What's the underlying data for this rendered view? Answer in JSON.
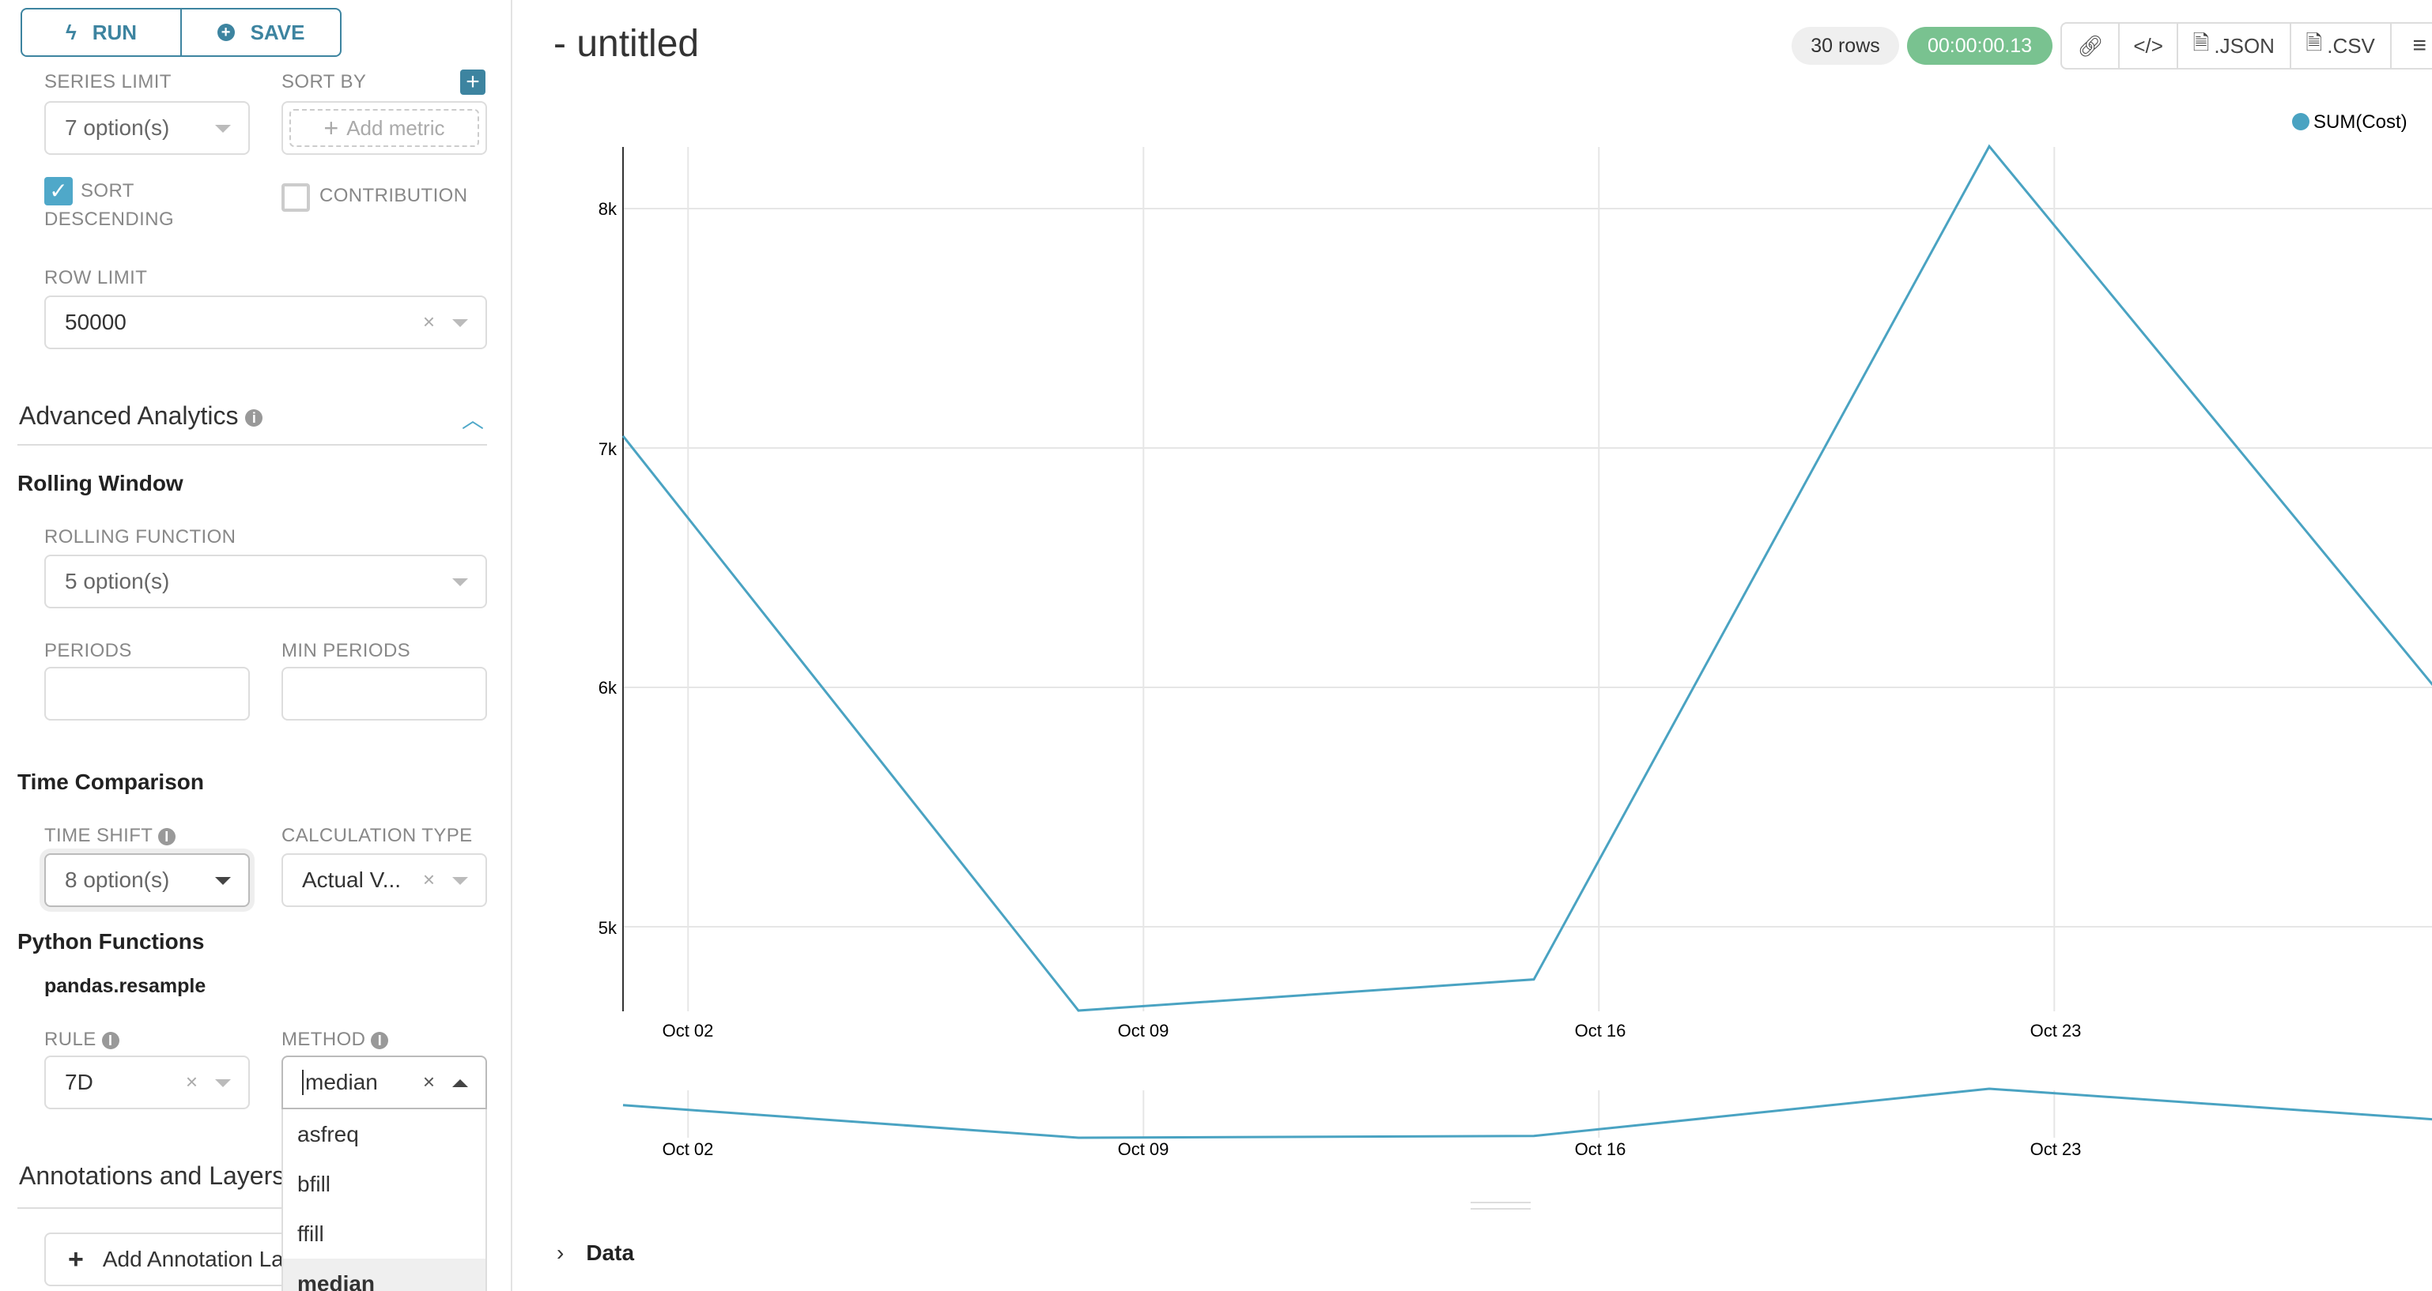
{
  "toolbar": {
    "run_label": "RUN",
    "save_label": "SAVE"
  },
  "sidebar": {
    "series_limit": {
      "label": "SERIES LIMIT",
      "value": "7 option(s)"
    },
    "sort_by": {
      "label": "SORT BY",
      "placeholder": "Add metric"
    },
    "sort_descending": {
      "label_1": "SORT",
      "label_2": "DESCENDING",
      "checked": true
    },
    "contribution": {
      "label": "CONTRIBUTION",
      "checked": false
    },
    "row_limit": {
      "label": "ROW LIMIT",
      "value": "50000"
    },
    "advanced_analytics": {
      "title": "Advanced Analytics",
      "expanded": true
    },
    "rolling_window": {
      "title": "Rolling Window",
      "function_label": "ROLLING FUNCTION",
      "function_value": "5 option(s)",
      "periods_label": "PERIODS",
      "periods_value": "",
      "min_periods_label": "MIN PERIODS",
      "min_periods_value": ""
    },
    "time_comparison": {
      "title": "Time Comparison",
      "time_shift_label": "TIME SHIFT",
      "time_shift_value": "8 option(s)",
      "calc_type_label": "CALCULATION TYPE",
      "calc_type_value": "Actual V..."
    },
    "python_functions": {
      "title": "Python Functions",
      "subtitle": "pandas.resample",
      "rule_label": "RULE",
      "rule_value": "7D",
      "method_label": "METHOD",
      "method_value": "median",
      "method_options": [
        "asfreq",
        "bfill",
        "ffill",
        "median"
      ],
      "method_selected": "median"
    },
    "annotations": {
      "title": "Annotations and Layers",
      "add_label": "Add Annotation Layer"
    }
  },
  "header": {
    "title": "- untitled",
    "rows_badge": "30 rows",
    "timer": "00:00:00.13",
    "json_label": ".JSON",
    "csv_label": ".CSV"
  },
  "colors": {
    "accent": "#3d84a0",
    "series": "#4aa3c2",
    "timer_bg": "#79c290",
    "checkbox": "#4fa8c9"
  },
  "data_section": {
    "label": "Data"
  },
  "chart_data": {
    "type": "line",
    "x": [
      "2021-10-01",
      "2021-10-08",
      "2021-10-15",
      "2021-10-22",
      "2021-10-29"
    ],
    "series": [
      {
        "name": "SUM(Cost)",
        "values": [
          7050,
          4650,
          4780,
          8260,
          5950
        ]
      }
    ],
    "x_ticks": [
      "Oct 02",
      "Oct 09",
      "Oct 16",
      "Oct 23"
    ],
    "y_ticks": [
      "5k",
      "6k",
      "7k",
      "8k"
    ],
    "y_tick_values": [
      5000,
      6000,
      7000,
      8000
    ],
    "legend": "top-right",
    "grid": true,
    "has_focus_context_brush": true
  }
}
